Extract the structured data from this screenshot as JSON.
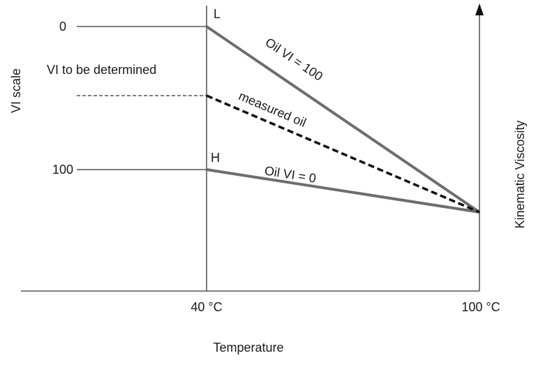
{
  "labels": {
    "vi_scale": "VI scale",
    "vi_zero": "0",
    "vi_hundred": "100",
    "vi_to_be_determined": "VI to be determined",
    "point_l": "L",
    "point_h": "H",
    "oil_vi_100": "Oil VI = 100",
    "measured_oil": "measured oil",
    "oil_vi_0": "Oil VI = 0",
    "temp_40": "40 °C",
    "temp_100": "100 °C",
    "x_axis_title": "Temperature",
    "y_axis_title": "Kinematic Viscosity"
  },
  "colors": {
    "axis": "#333333",
    "reference_line": "#6d6d6d",
    "measured_line": "#111111"
  }
}
